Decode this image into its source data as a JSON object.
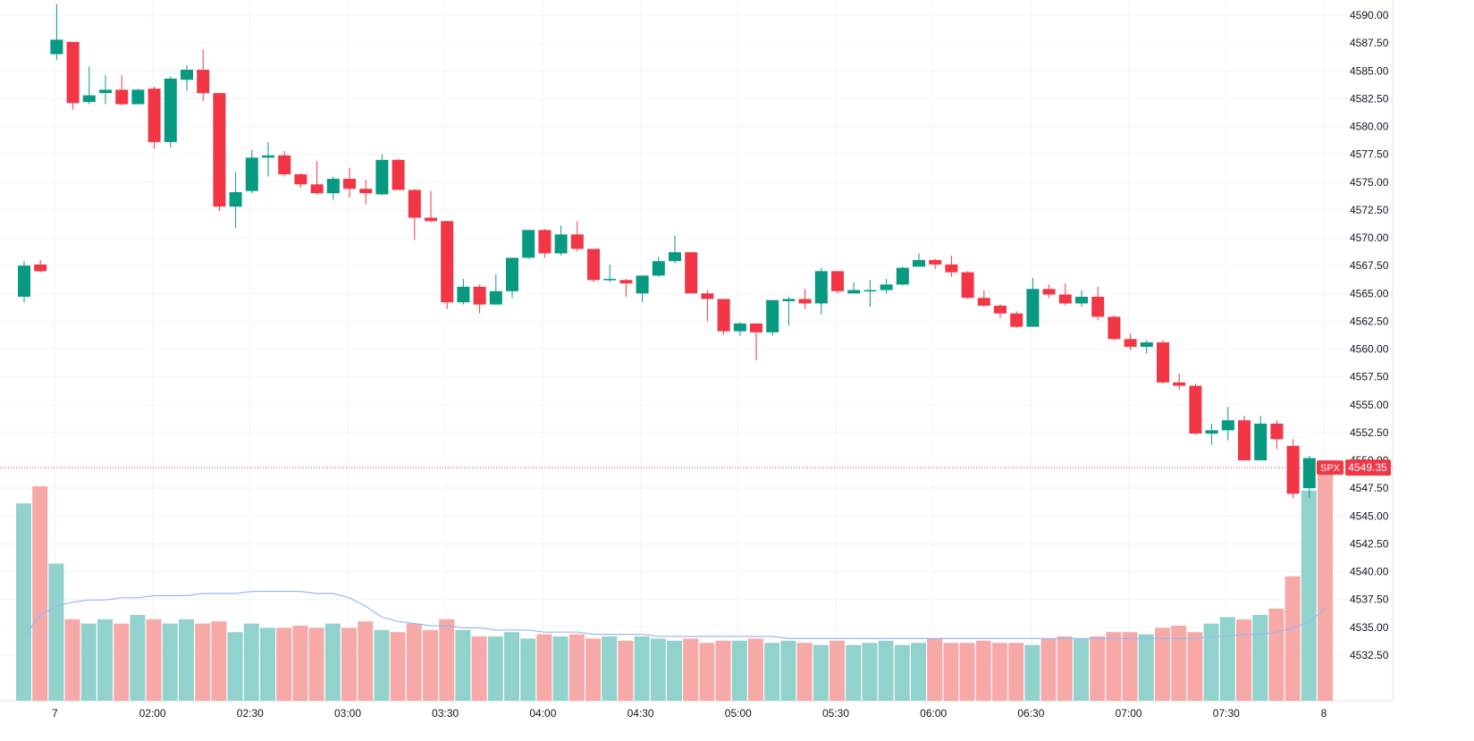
{
  "chart_data": {
    "type": "candlestick",
    "symbol": "SPX",
    "last_price": "4549.35",
    "colors": {
      "up": "#089981",
      "down": "#f23645",
      "volume_up": "#92d2cc",
      "volume_down": "#f7a9a7",
      "volume_ma": "#9db8f0"
    },
    "y_ticks": [
      "4590.00",
      "4587.50",
      "4585.00",
      "4582.50",
      "4580.00",
      "4577.50",
      "4575.00",
      "4572.50",
      "4570.00",
      "4567.50",
      "4565.00",
      "4562.50",
      "4560.00",
      "4557.50",
      "4555.00",
      "4552.50",
      "4550.00",
      "4547.50",
      "4545.00",
      "4542.50",
      "4540.00",
      "4537.50",
      "4535.00",
      "4532.50"
    ],
    "x_ticks": [
      {
        "index": 2,
        "label": "7"
      },
      {
        "index": 8,
        "label": "02:00"
      },
      {
        "index": 14,
        "label": "02:30"
      },
      {
        "index": 20,
        "label": "03:00"
      },
      {
        "index": 26,
        "label": "03:30"
      },
      {
        "index": 32,
        "label": "04:00"
      },
      {
        "index": 38,
        "label": "04:30"
      },
      {
        "index": 44,
        "label": "05:00"
      },
      {
        "index": 50,
        "label": "05:30"
      },
      {
        "index": 56,
        "label": "06:00"
      },
      {
        "index": 62,
        "label": "06:30"
      },
      {
        "index": 68,
        "label": "07:00"
      },
      {
        "index": 74,
        "label": "07:30"
      },
      {
        "index": 80,
        "label": "8"
      }
    ],
    "candles": [
      [
        4564.7,
        4567.9,
        4564.2,
        4567.5
      ],
      [
        4567.6,
        4568.0,
        4566.9,
        4567.0
      ],
      [
        4586.5,
        4591.0,
        4586.0,
        4587.8
      ],
      [
        4587.6,
        4587.6,
        4581.5,
        4582.1
      ],
      [
        4582.2,
        4585.4,
        4582.0,
        4582.8
      ],
      [
        4583.0,
        4584.6,
        4582.0,
        4583.3
      ],
      [
        4583.3,
        4584.6,
        4581.9,
        4582.0
      ],
      [
        4582.0,
        4583.4,
        4582.0,
        4583.3
      ],
      [
        4583.4,
        4583.6,
        4578.0,
        4578.6
      ],
      [
        4578.6,
        4584.5,
        4578.1,
        4584.3
      ],
      [
        4584.2,
        4585.5,
        4583.2,
        4585.1
      ],
      [
        4585.1,
        4586.9,
        4582.3,
        4583.0
      ],
      [
        4583.0,
        4583.0,
        4572.4,
        4572.8
      ],
      [
        4572.8,
        4575.9,
        4570.9,
        4574.1
      ],
      [
        4574.2,
        4577.9,
        4574.0,
        4577.2
      ],
      [
        4577.2,
        4578.6,
        4575.5,
        4577.4
      ],
      [
        4577.4,
        4577.8,
        4575.5,
        4575.7
      ],
      [
        4575.7,
        4575.8,
        4574.5,
        4574.8
      ],
      [
        4574.8,
        4576.9,
        4573.9,
        4574.0
      ],
      [
        4574.0,
        4575.5,
        4573.4,
        4575.3
      ],
      [
        4575.3,
        4576.3,
        4573.6,
        4574.4
      ],
      [
        4574.4,
        4575.2,
        4573.0,
        4574.0
      ],
      [
        4573.9,
        4577.5,
        4573.8,
        4577.0
      ],
      [
        4577.0,
        4577.1,
        4574.3,
        4574.3
      ],
      [
        4574.3,
        4574.4,
        4569.8,
        4571.8
      ],
      [
        4571.8,
        4574.2,
        4571.4,
        4571.5
      ],
      [
        4571.5,
        4571.5,
        4563.6,
        4564.2
      ],
      [
        4564.2,
        4566.3,
        4564.0,
        4565.6
      ],
      [
        4565.6,
        4565.8,
        4563.2,
        4564.0
      ],
      [
        4564.0,
        4566.7,
        4564.0,
        4565.2
      ],
      [
        4565.2,
        4568.2,
        4564.6,
        4568.2
      ],
      [
        4568.2,
        4570.7,
        4568.1,
        4570.7
      ],
      [
        4570.7,
        4570.8,
        4568.2,
        4568.6
      ],
      [
        4568.6,
        4571.1,
        4568.4,
        4570.3
      ],
      [
        4570.3,
        4571.5,
        4568.8,
        4569.0
      ],
      [
        4569.0,
        4569.0,
        4566.0,
        4566.2
      ],
      [
        4566.2,
        4567.6,
        4566.0,
        4566.3
      ],
      [
        4566.2,
        4566.3,
        4564.7,
        4565.9
      ],
      [
        4565.0,
        4566.6,
        4564.2,
        4566.6
      ],
      [
        4566.6,
        4568.3,
        4566.5,
        4567.9
      ],
      [
        4567.9,
        4570.2,
        4567.7,
        4568.7
      ],
      [
        4568.7,
        4568.7,
        4565.0,
        4565.0
      ],
      [
        4565.0,
        4565.3,
        4562.5,
        4564.5
      ],
      [
        4564.5,
        4564.5,
        4561.3,
        4561.6
      ],
      [
        4561.6,
        4562.4,
        4561.2,
        4562.3
      ],
      [
        4562.3,
        4562.3,
        4559.0,
        4561.5
      ],
      [
        4561.5,
        4564.3,
        4561.2,
        4564.4
      ],
      [
        4564.3,
        4564.7,
        4562.1,
        4564.5
      ],
      [
        4564.5,
        4565.4,
        4563.6,
        4564.1
      ],
      [
        4564.1,
        4567.3,
        4563.1,
        4567.0
      ],
      [
        4567.0,
        4567.0,
        4565.0,
        4565.2
      ],
      [
        4565.0,
        4566.0,
        4565.0,
        4565.3
      ],
      [
        4565.2,
        4566.2,
        4563.8,
        4565.3
      ],
      [
        4565.3,
        4566.3,
        4565.0,
        4565.8
      ],
      [
        4565.8,
        4567.4,
        4565.7,
        4567.3
      ],
      [
        4567.4,
        4568.6,
        4567.4,
        4568.0
      ],
      [
        4568.0,
        4568.1,
        4567.2,
        4567.6
      ],
      [
        4567.6,
        4568.4,
        4566.5,
        4566.9
      ],
      [
        4566.9,
        4567.0,
        4564.5,
        4564.6
      ],
      [
        4564.6,
        4565.3,
        4563.8,
        4563.9
      ],
      [
        4563.9,
        4564.0,
        4562.8,
        4563.2
      ],
      [
        4563.2,
        4563.4,
        4561.9,
        4562.0
      ],
      [
        4562.0,
        4566.4,
        4562.0,
        4565.4
      ],
      [
        4565.4,
        4565.8,
        4564.6,
        4564.9
      ],
      [
        4564.9,
        4565.9,
        4563.9,
        4564.1
      ],
      [
        4564.1,
        4565.3,
        4563.8,
        4564.7
      ],
      [
        4564.7,
        4565.6,
        4562.6,
        4562.9
      ],
      [
        4562.9,
        4563.0,
        4560.8,
        4560.9
      ],
      [
        4560.9,
        4561.4,
        4559.9,
        4560.2
      ],
      [
        4560.2,
        4560.8,
        4559.6,
        4560.6
      ],
      [
        4560.6,
        4560.8,
        4556.9,
        4557.0
      ],
      [
        4557.0,
        4557.8,
        4556.3,
        4556.7
      ],
      [
        4556.7,
        4556.9,
        4552.3,
        4552.4
      ],
      [
        4552.4,
        4553.3,
        4551.4,
        4552.7
      ],
      [
        4552.7,
        4554.8,
        4551.8,
        4553.6
      ],
      [
        4553.6,
        4554.0,
        4550.0,
        4550.0
      ],
      [
        4550.0,
        4554.0,
        4550.0,
        4553.3
      ],
      [
        4553.3,
        4553.6,
        4551.0,
        4551.9
      ],
      [
        4551.3,
        4551.9,
        4546.6,
        4547.0
      ],
      [
        4547.5,
        4550.4,
        4546.6,
        4550.2
      ],
      [
        4549.8,
        4549.8,
        4549.3,
        4549.35
      ]
    ],
    "volume": [
      0.92,
      1.0,
      0.64,
      0.38,
      0.36,
      0.38,
      0.36,
      0.4,
      0.38,
      0.36,
      0.38,
      0.36,
      0.37,
      0.32,
      0.36,
      0.34,
      0.34,
      0.35,
      0.34,
      0.36,
      0.34,
      0.37,
      0.33,
      0.32,
      0.36,
      0.33,
      0.38,
      0.33,
      0.3,
      0.3,
      0.32,
      0.29,
      0.31,
      0.3,
      0.31,
      0.29,
      0.3,
      0.28,
      0.3,
      0.29,
      0.28,
      0.29,
      0.27,
      0.28,
      0.28,
      0.29,
      0.27,
      0.28,
      0.27,
      0.26,
      0.28,
      0.26,
      0.27,
      0.28,
      0.26,
      0.27,
      0.29,
      0.27,
      0.27,
      0.28,
      0.27,
      0.27,
      0.26,
      0.29,
      0.3,
      0.29,
      0.3,
      0.32,
      0.32,
      0.31,
      0.34,
      0.35,
      0.32,
      0.36,
      0.39,
      0.38,
      0.4,
      0.43,
      0.58,
      0.98,
      1.12
    ],
    "volume_ma": [
      0.3,
      0.4,
      0.44,
      0.46,
      0.47,
      0.47,
      0.48,
      0.48,
      0.49,
      0.49,
      0.49,
      0.5,
      0.5,
      0.5,
      0.51,
      0.51,
      0.51,
      0.51,
      0.5,
      0.5,
      0.48,
      0.44,
      0.39,
      0.37,
      0.36,
      0.35,
      0.35,
      0.34,
      0.34,
      0.33,
      0.33,
      0.33,
      0.32,
      0.32,
      0.32,
      0.31,
      0.31,
      0.31,
      0.31,
      0.3,
      0.3,
      0.3,
      0.3,
      0.3,
      0.3,
      0.3,
      0.3,
      0.29,
      0.29,
      0.29,
      0.29,
      0.29,
      0.29,
      0.29,
      0.29,
      0.29,
      0.29,
      0.29,
      0.29,
      0.29,
      0.29,
      0.29,
      0.29,
      0.29,
      0.29,
      0.29,
      0.29,
      0.29,
      0.29,
      0.29,
      0.29,
      0.29,
      0.29,
      0.3,
      0.3,
      0.31,
      0.31,
      0.32,
      0.34,
      0.37,
      0.43
    ]
  }
}
